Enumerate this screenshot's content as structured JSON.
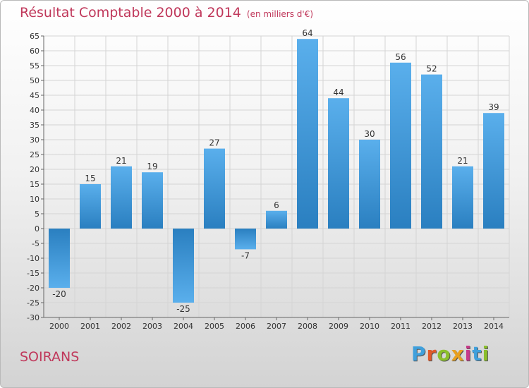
{
  "header": {
    "title": "Résultat Comptable 2000 à 2014",
    "unit": "(en milliers d'€)"
  },
  "footer": {
    "town": "SOIRANS",
    "logo_letters": [
      "P",
      "r",
      "o",
      "x",
      "i",
      "t",
      "i"
    ],
    "logo_colors": [
      "#3fa0dc",
      "#e05a2a",
      "#8bbf2c",
      "#e8a020",
      "#c83a8a",
      "#3fa0dc",
      "#8bbf2c"
    ]
  },
  "chart_data": {
    "type": "bar",
    "title": "Résultat Comptable 2000 à 2014",
    "subtitle": "(en milliers d'€)",
    "xlabel": "",
    "ylabel": "",
    "categories": [
      "2000",
      "2001",
      "2002",
      "2003",
      "2004",
      "2005",
      "2006",
      "2007",
      "2008",
      "2009",
      "2010",
      "2011",
      "2012",
      "2013",
      "2014"
    ],
    "values": [
      -20,
      15,
      21,
      19,
      -25,
      27,
      -7,
      6,
      64,
      44,
      30,
      56,
      52,
      21,
      39
    ],
    "ylim": [
      -30,
      65
    ],
    "yticks": [
      -30,
      -25,
      -20,
      -15,
      -10,
      -5,
      0,
      5,
      10,
      15,
      20,
      25,
      30,
      35,
      40,
      45,
      50,
      55,
      60,
      65
    ],
    "grid": true,
    "bar_color_light": "#5aafec",
    "bar_color_dark": "#2a7fc0"
  }
}
